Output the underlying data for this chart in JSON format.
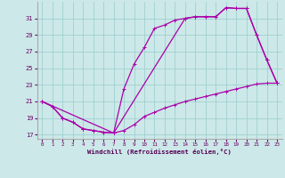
{
  "xlabel": "Windchill (Refroidissement éolien,°C)",
  "xlim": [
    -0.5,
    23.5
  ],
  "ylim": [
    16.5,
    33
  ],
  "xticks": [
    0,
    1,
    2,
    3,
    4,
    5,
    6,
    7,
    8,
    9,
    10,
    11,
    12,
    13,
    14,
    15,
    16,
    17,
    18,
    19,
    20,
    21,
    22,
    23
  ],
  "yticks": [
    17,
    19,
    21,
    23,
    25,
    27,
    29,
    31
  ],
  "bg_color": "#cce8e8",
  "line_color": "#aa00aa",
  "grid_color": "#99cccc",
  "line1_x": [
    0,
    1,
    2,
    3,
    4,
    5,
    6,
    7,
    8,
    9,
    10,
    11,
    12,
    13,
    14,
    15,
    16,
    17,
    18,
    19,
    20,
    21,
    22,
    23
  ],
  "line1_y": [
    21.0,
    20.4,
    19.0,
    18.5,
    17.7,
    17.5,
    17.3,
    17.2,
    17.5,
    18.2,
    19.2,
    19.7,
    20.2,
    20.6,
    21.0,
    21.3,
    21.6,
    21.9,
    22.2,
    22.5,
    22.8,
    23.1,
    23.2,
    23.2
  ],
  "line2_x": [
    0,
    1,
    2,
    3,
    4,
    5,
    6,
    7,
    8,
    9,
    10,
    11,
    12,
    13,
    14,
    15,
    16,
    17,
    18,
    19,
    20,
    21,
    22,
    23
  ],
  "line2_y": [
    21.0,
    20.4,
    19.0,
    18.5,
    17.7,
    17.5,
    17.3,
    17.2,
    22.5,
    25.5,
    27.5,
    29.8,
    30.2,
    30.8,
    31.0,
    31.2,
    31.2,
    31.2,
    32.3,
    32.2,
    32.2,
    29.0,
    26.0,
    23.2
  ],
  "line3_x": [
    0,
    7,
    14,
    15,
    16,
    17,
    18,
    19,
    20,
    21,
    22,
    23
  ],
  "line3_y": [
    21.0,
    17.2,
    31.0,
    31.2,
    31.2,
    31.2,
    32.3,
    32.2,
    32.2,
    29.0,
    26.0,
    23.2
  ]
}
